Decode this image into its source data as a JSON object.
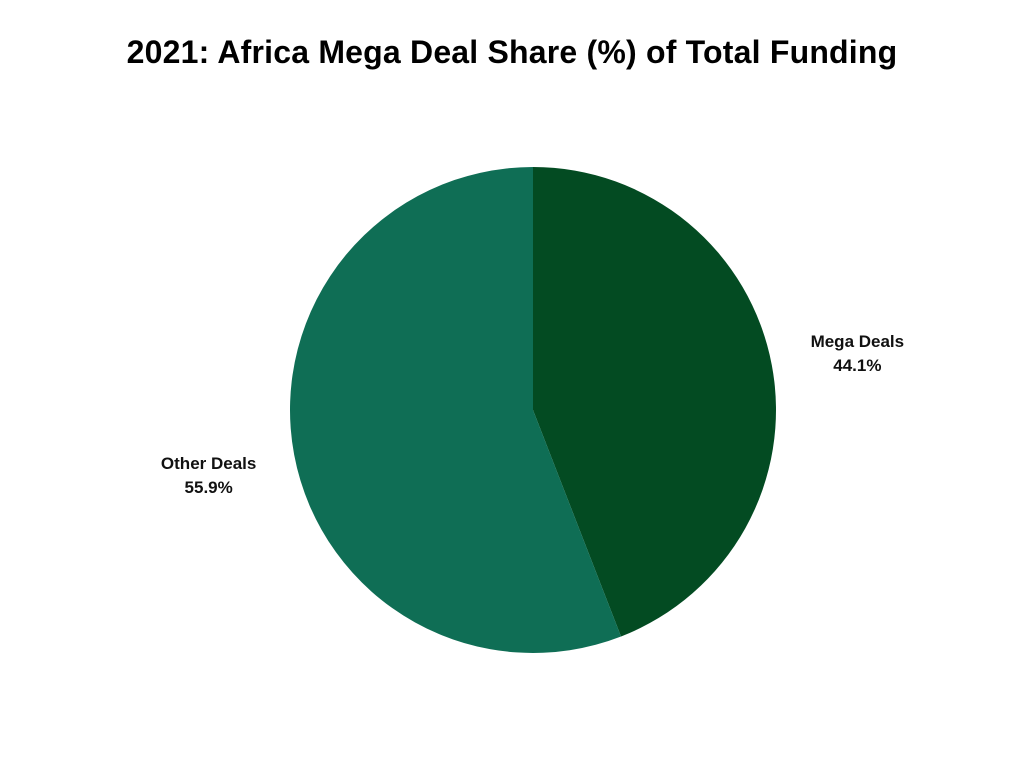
{
  "chart_data": {
    "type": "pie",
    "title": "2021: Africa Mega Deal Share (%) of Total Funding",
    "slices": [
      {
        "label": "Mega Deals",
        "value": 44.1,
        "value_label": "44.1%",
        "color": "#034b22"
      },
      {
        "label": "Other Deals",
        "value": 55.9,
        "value_label": "55.9%",
        "color": "#0f6e55"
      }
    ],
    "start_angle": "12 o'clock",
    "direction": "clockwise",
    "legend": "none",
    "labels_placement": "outside"
  }
}
